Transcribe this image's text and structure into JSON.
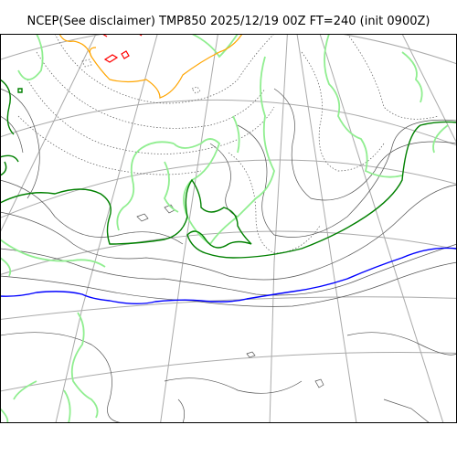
{
  "title": "NCEP(See disclaimer) TMP850 2025/12/19 00Z FT=240 (init 0900Z)",
  "colors": {
    "frame": "#000000",
    "graticule": "#aaaaaa",
    "coast_light_green": "#90ee90",
    "contour_dark_green": "#008000",
    "contour_blue": "#0000ff",
    "contour_orange": "#ffa500",
    "contour_red": "#ff0000",
    "contour_gray": "#555555",
    "contour_dotted": "#555555"
  }
}
